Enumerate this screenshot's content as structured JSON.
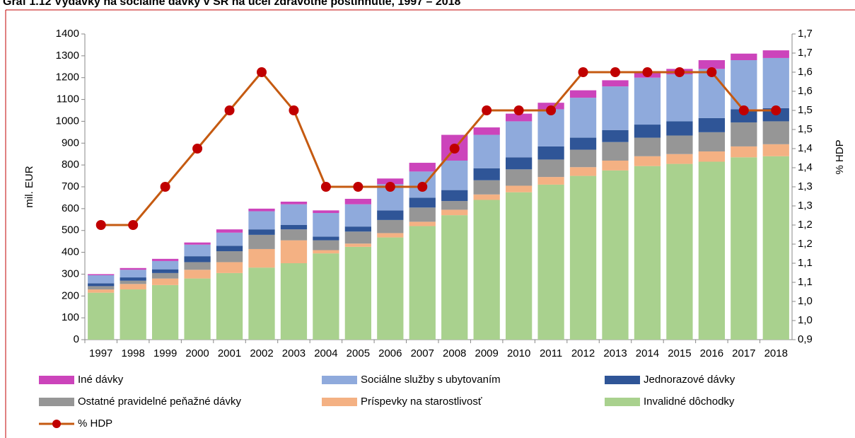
{
  "chart_data": {
    "type": "stacked_bar_line",
    "title": "Graf 1.12 Výdavky na sociálne dávky v SR na účel zdravotné postihnutie, 1997 – 2018",
    "ylabel": "mil. EUR",
    "y2label": "% HDP",
    "categories": [
      "1997",
      "1998",
      "1999",
      "2000",
      "2001",
      "2002",
      "2003",
      "2004",
      "2005",
      "2006",
      "2007",
      "2008",
      "2009",
      "2010",
      "2011",
      "2012",
      "2013",
      "2014",
      "2015",
      "2016",
      "2017",
      "2018"
    ],
    "series": [
      {
        "name": "Invalidné dôchodky",
        "color": "#a9d18e",
        "values": [
          215,
          230,
          250,
          280,
          305,
          330,
          350,
          395,
          425,
          468,
          520,
          570,
          640,
          675,
          710,
          750,
          775,
          795,
          805,
          815,
          835,
          840
        ]
      },
      {
        "name": "Príspevky na starostlivosť",
        "color": "#f4b183",
        "values": [
          15,
          25,
          30,
          40,
          50,
          85,
          105,
          15,
          15,
          20,
          20,
          25,
          25,
          30,
          35,
          40,
          45,
          45,
          45,
          47,
          50,
          55
        ]
      },
      {
        "name": "Ostatné pravidelné peňažné dávky",
        "color": "#969696",
        "values": [
          15,
          15,
          25,
          35,
          50,
          65,
          50,
          45,
          55,
          60,
          65,
          40,
          65,
          75,
          80,
          80,
          85,
          85,
          85,
          88,
          110,
          105
        ]
      },
      {
        "name": "Jednorazové dávky",
        "color": "#2f5597",
        "values": [
          13,
          15,
          17,
          27,
          25,
          25,
          20,
          17,
          23,
          44,
          45,
          50,
          55,
          55,
          60,
          55,
          55,
          60,
          65,
          65,
          60,
          60
        ]
      },
      {
        "name": "Sociálne služby s ubytovaním",
        "color": "#8faadc",
        "values": [
          37,
          35,
          38,
          53,
          60,
          83,
          95,
          108,
          102,
          120,
          120,
          135,
          153,
          165,
          170,
          183,
          200,
          215,
          215,
          225,
          225,
          230
        ]
      },
      {
        "name": "Iné dávky",
        "color": "#cc44bb",
        "values": [
          5,
          8,
          10,
          10,
          15,
          12,
          12,
          12,
          25,
          26,
          40,
          118,
          34,
          35,
          30,
          34,
          28,
          30,
          25,
          40,
          30,
          35
        ]
      },
      {
        "name": "% HDP",
        "color": "#c55a11",
        "marker_color": "#c00000",
        "type": "line",
        "axis": "y2",
        "values": [
          1.2,
          1.2,
          1.3,
          1.4,
          1.5,
          1.6,
          1.5,
          1.3,
          1.3,
          1.3,
          1.3,
          1.4,
          1.5,
          1.5,
          1.5,
          1.6,
          1.6,
          1.6,
          1.6,
          1.6,
          1.5,
          1.5
        ]
      }
    ],
    "ylim": [
      0,
      1400
    ],
    "yticks": [
      0,
      100,
      200,
      300,
      400,
      500,
      600,
      700,
      800,
      900,
      1000,
      1100,
      1200,
      1300,
      1400
    ],
    "y2lim": [
      0.9,
      1.7
    ],
    "y2ticks": [
      {
        "value": 0.9,
        "label": "0,9"
      },
      {
        "value": 0.95,
        "label": "1,0"
      },
      {
        "value": 1.0,
        "label": "1,0"
      },
      {
        "value": 1.05,
        "label": "1,1"
      },
      {
        "value": 1.1,
        "label": "1,1"
      },
      {
        "value": 1.15,
        "label": "1,2"
      },
      {
        "value": 1.2,
        "label": "1,2"
      },
      {
        "value": 1.25,
        "label": "1,3"
      },
      {
        "value": 1.3,
        "label": "1,3"
      },
      {
        "value": 1.35,
        "label": "1,4"
      },
      {
        "value": 1.4,
        "label": "1,4"
      },
      {
        "value": 1.45,
        "label": "1,5"
      },
      {
        "value": 1.5,
        "label": "1,5"
      },
      {
        "value": 1.55,
        "label": "1,6"
      },
      {
        "value": 1.6,
        "label": "1,6"
      },
      {
        "value": 1.65,
        "label": "1,7"
      },
      {
        "value": 1.7,
        "label": "1,7"
      }
    ],
    "grid": false,
    "legend": "bottom"
  }
}
